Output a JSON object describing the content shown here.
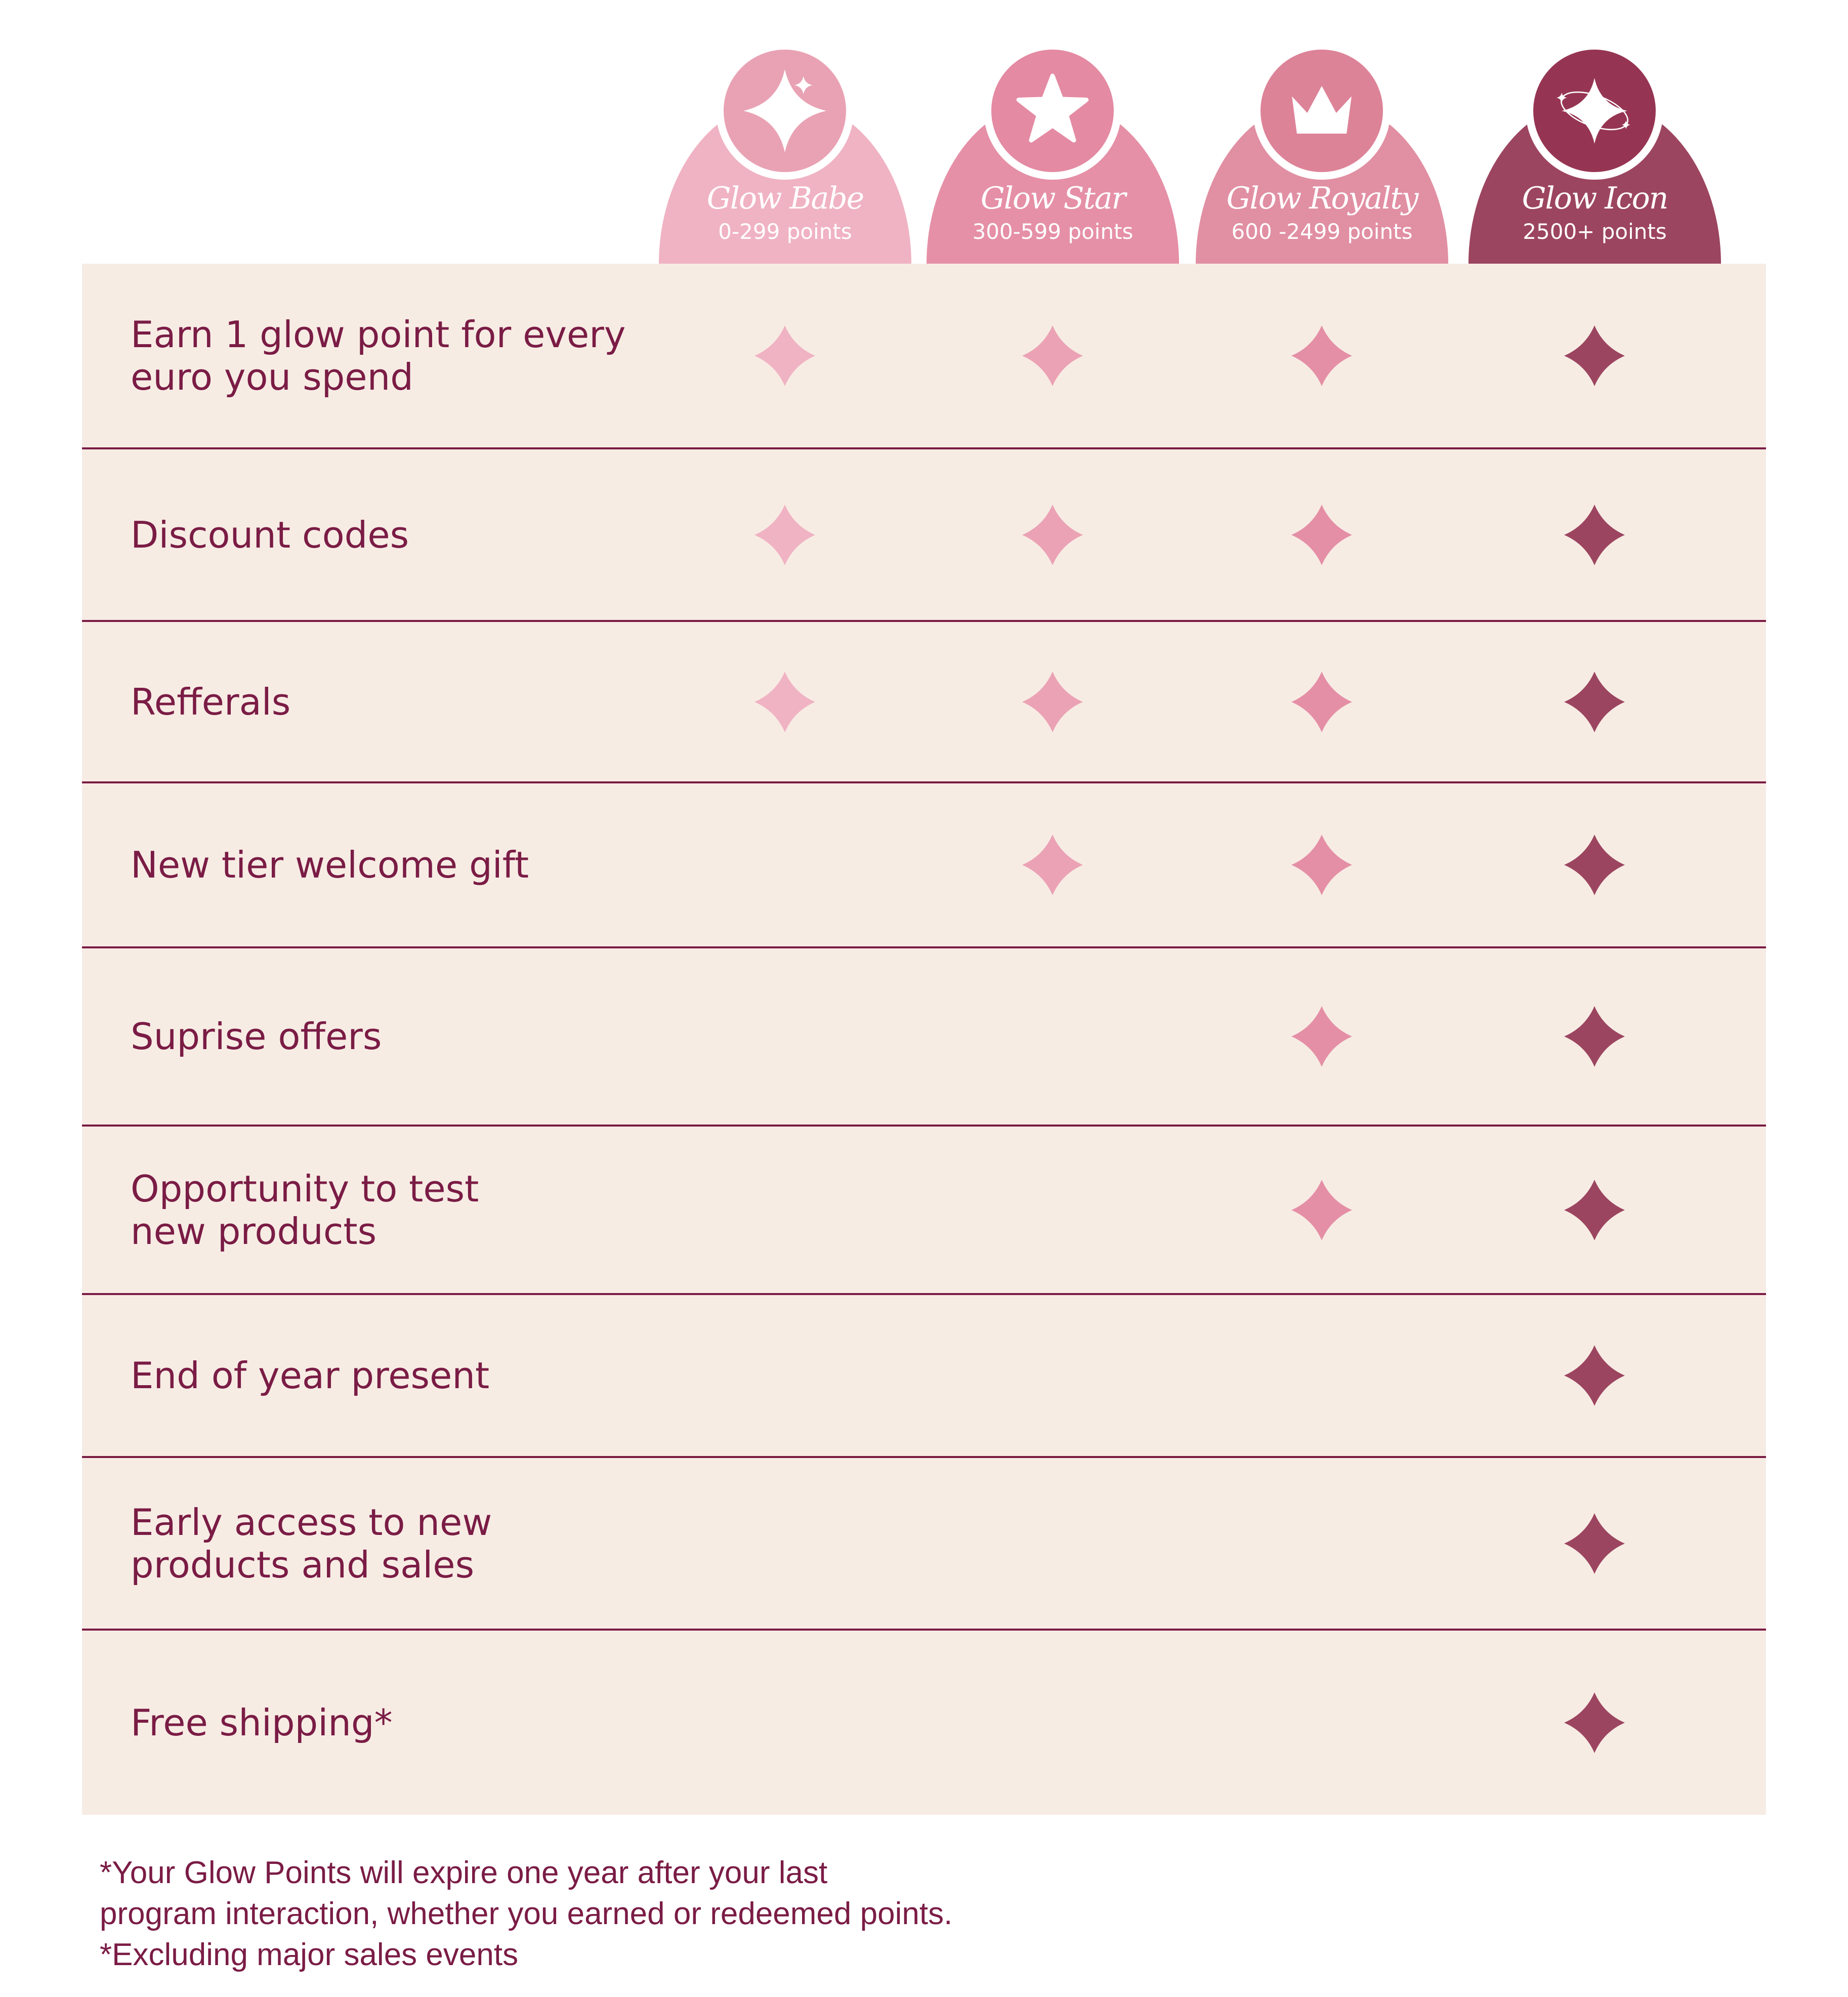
{
  "tiers": [
    {
      "name": "Glow Babe",
      "points": "0-299 points",
      "icon": "sparkle-icon",
      "tab_color": "#f0b3c3",
      "circle_color": "#e9a2b4",
      "mark_color": "#f0b3c3"
    },
    {
      "name": "Glow Star",
      "points": "300-599 points",
      "icon": "star-icon",
      "tab_color": "#e590a7",
      "circle_color": "#e48aa3",
      "mark_color": "#eba2b5"
    },
    {
      "name": "Glow Royalty",
      "points": "600 -2499 points",
      "icon": "crown-icon",
      "tab_color": "#e18fa3",
      "circle_color": "#dd8398",
      "mark_color": "#e48fa6"
    },
    {
      "name": "Glow Icon",
      "points": "2500+ points",
      "icon": "orbit-sparkle-icon",
      "tab_color": "#9c4560",
      "circle_color": "#963553",
      "mark_color": "#9c4560"
    }
  ],
  "benefits": [
    {
      "label": "Earn 1 glow point for every\neuro you spend",
      "included": [
        true,
        true,
        true,
        true
      ]
    },
    {
      "label": "Discount codes",
      "included": [
        true,
        true,
        true,
        true
      ]
    },
    {
      "label": "Refferals",
      "included": [
        true,
        true,
        true,
        true
      ]
    },
    {
      "label": "New tier welcome gift",
      "included": [
        false,
        true,
        true,
        true
      ]
    },
    {
      "label": "Suprise offers",
      "included": [
        false,
        false,
        true,
        true
      ]
    },
    {
      "label": "Opportunity to test\nnew products",
      "included": [
        false,
        false,
        true,
        true
      ]
    },
    {
      "label": "End of year present",
      "included": [
        false,
        false,
        false,
        true
      ]
    },
    {
      "label": "Early access to new\nproducts and sales",
      "included": [
        false,
        false,
        false,
        true
      ]
    },
    {
      "label": "Free shipping*",
      "included": [
        false,
        false,
        false,
        true
      ]
    }
  ],
  "footer": {
    "lines": [
      "*Your Glow Points will expire one year after your last",
      "program interaction, whether you earned or redeemed points.",
      "*Excluding major sales events"
    ]
  },
  "colors": {
    "background": "#f7ece4",
    "text": "#7a1c45",
    "divider": "#7a1c45"
  }
}
